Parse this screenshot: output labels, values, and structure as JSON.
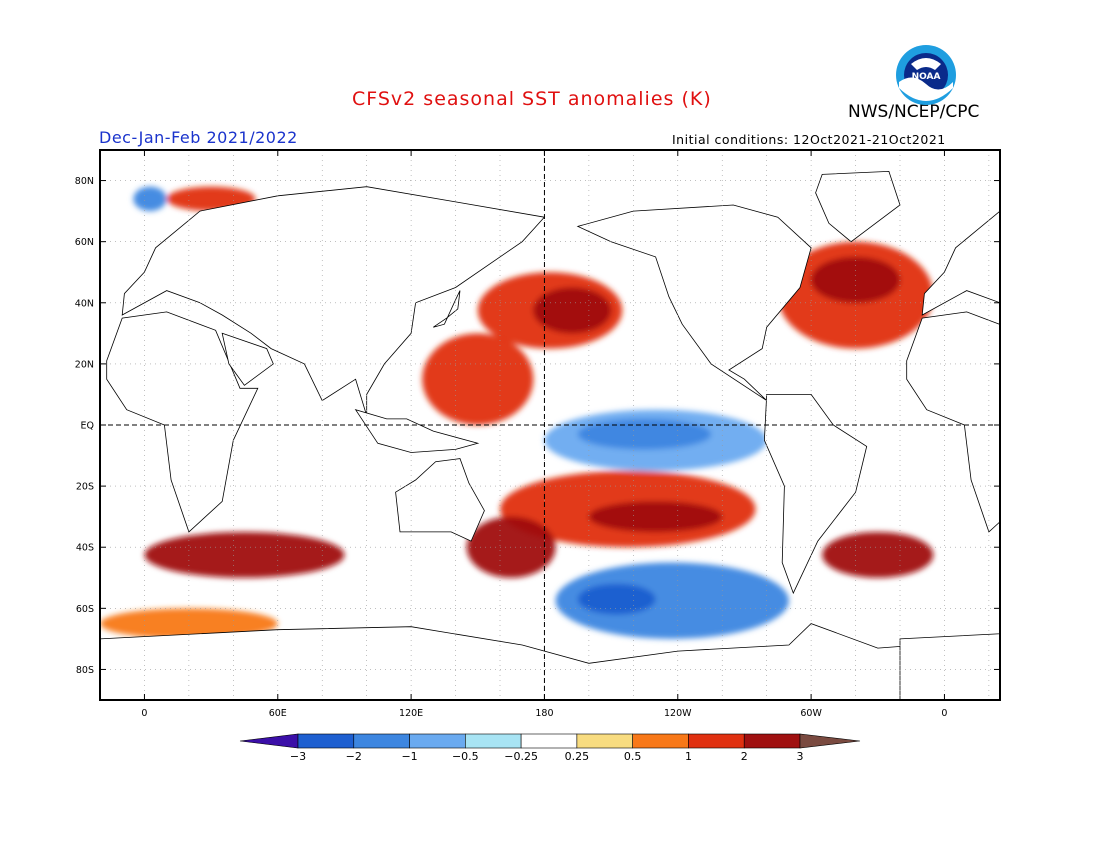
{
  "title": "CFSv2 seasonal SST anomalies (K)",
  "season": "Dec-Jan-Feb 2021/2022",
  "organization": "NWS/NCEP/CPC",
  "initial_conditions": "Initial conditions: 12Oct2021-21Oct2021",
  "logo": {
    "icon": "noaa-logo-icon",
    "text": "NOAA"
  },
  "map": {
    "projection": "equirectangular",
    "lon_range": [
      -20,
      385
    ],
    "lat_range": [
      -90,
      90
    ],
    "reference_lines": [
      "equator",
      "dateline-180"
    ],
    "lat_ticks": [
      {
        "value": 80,
        "label": "80N"
      },
      {
        "value": 60,
        "label": "60N"
      },
      {
        "value": 40,
        "label": "40N"
      },
      {
        "value": 20,
        "label": "20N"
      },
      {
        "value": 0,
        "label": "EQ"
      },
      {
        "value": -20,
        "label": "20S"
      },
      {
        "value": -40,
        "label": "40S"
      },
      {
        "value": -60,
        "label": "60S"
      },
      {
        "value": -80,
        "label": "80S"
      }
    ],
    "lon_ticks": [
      {
        "value": 0,
        "label": "0"
      },
      {
        "value": 60,
        "label": "60E"
      },
      {
        "value": 120,
        "label": "120E"
      },
      {
        "value": 180,
        "label": "180"
      },
      {
        "value": 240,
        "label": "120W"
      },
      {
        "value": 300,
        "label": "60W"
      },
      {
        "value": 360,
        "label": "0"
      }
    ]
  },
  "colorbar": {
    "labels": [
      "-3",
      "-2",
      "-1",
      "-0.5",
      "-0.25",
      "0.25",
      "0.5",
      "1",
      "2",
      "3"
    ],
    "colors": [
      "#3b0fa8",
      "#1e5fd0",
      "#3d86e0",
      "#6aaaf0",
      "#a8e4f4",
      "#ffffff",
      "#f8dc80",
      "#f87818",
      "#e03010",
      "#a01010",
      "#7a4a40"
    ]
  },
  "anomaly_regions": [
    {
      "name": "equatorial-pacific-cold-tongue",
      "level": "-0.5",
      "lon": [
        180,
        280
      ],
      "lat": [
        -15,
        5
      ]
    },
    {
      "name": "equatorial-pacific-core",
      "level": "-1",
      "lon": [
        195,
        255
      ],
      "lat": [
        -8,
        2
      ]
    },
    {
      "name": "southern-pacific-cold",
      "level": "-1",
      "lon": [
        185,
        290
      ],
      "lat": [
        -70,
        -45
      ]
    },
    {
      "name": "south-pacific-cold-core",
      "level": "-2",
      "lon": [
        195,
        230
      ],
      "lat": [
        -62,
        -52
      ]
    },
    {
      "name": "north-pacific-warm",
      "level": "1",
      "lon": [
        150,
        215
      ],
      "lat": [
        25,
        50
      ]
    },
    {
      "name": "north-pacific-warm-core",
      "level": "2",
      "lon": [
        175,
        210
      ],
      "lat": [
        30,
        45
      ]
    },
    {
      "name": "west-pacific-warm",
      "level": "1",
      "lon": [
        125,
        175
      ],
      "lat": [
        0,
        30
      ]
    },
    {
      "name": "south-pacific-diagonal-warm",
      "level": "1",
      "lon": [
        160,
        275
      ],
      "lat": [
        -40,
        -15
      ]
    },
    {
      "name": "south-pacific-diagonal-core",
      "level": "2",
      "lon": [
        200,
        260
      ],
      "lat": [
        -35,
        -25
      ]
    },
    {
      "name": "tasman-sea-warm",
      "level": "2",
      "lon": [
        145,
        185
      ],
      "lat": [
        -50,
        -30
      ]
    },
    {
      "name": "north-atlantic-warm",
      "level": "1",
      "lon": [
        285,
        355
      ],
      "lat": [
        25,
        60
      ]
    },
    {
      "name": "north-atlantic-warm-core",
      "level": "2",
      "lon": [
        300,
        340
      ],
      "lat": [
        40,
        55
      ]
    },
    {
      "name": "south-atlantic-warm",
      "level": "2",
      "lon": [
        305,
        355
      ],
      "lat": [
        -50,
        -35
      ]
    },
    {
      "name": "southern-indian-warm",
      "level": "2",
      "lon": [
        0,
        90
      ],
      "lat": [
        -50,
        -35
      ]
    },
    {
      "name": "southern-ocean-warm-band",
      "level": "0.5",
      "lon": [
        -20,
        60
      ],
      "lat": [
        -70,
        -60
      ]
    },
    {
      "name": "arctic-cold-spot",
      "level": "-1",
      "lon": [
        -5,
        10
      ],
      "lat": [
        70,
        78
      ]
    },
    {
      "name": "arctic-warm-edge",
      "level": "1",
      "lon": [
        10,
        50
      ],
      "lat": [
        70,
        78
      ]
    }
  ]
}
